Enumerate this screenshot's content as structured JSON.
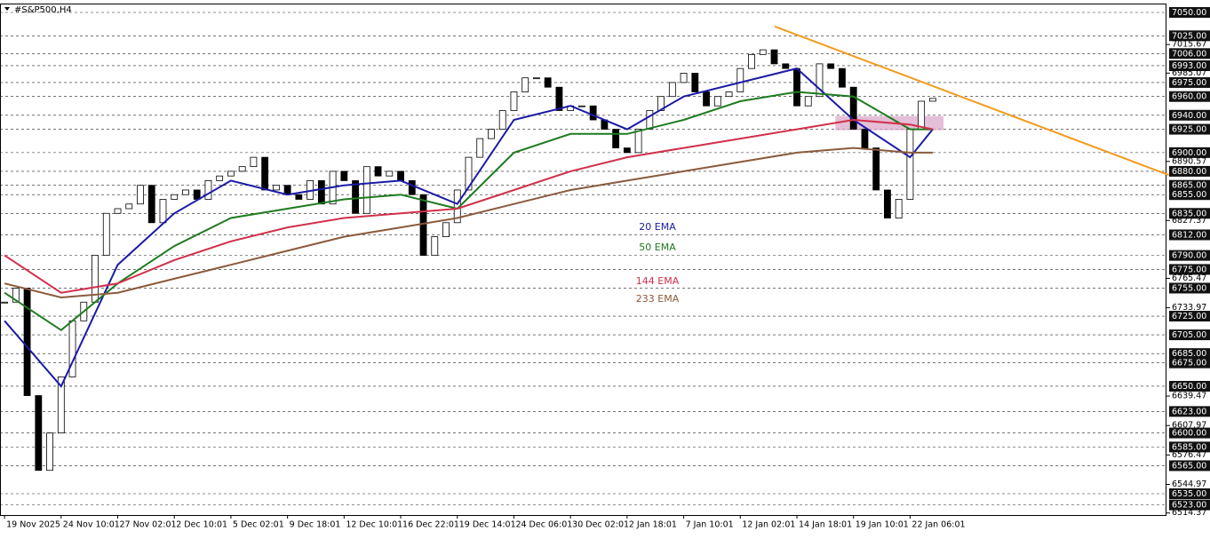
{
  "chart_data": {
    "type": "candlestick",
    "title": "#S&P500,H4",
    "xlim": [
      -0.08,
      20.53
    ],
    "ylim": [
      6512.2,
      7059.5
    ],
    "xticks": [
      {
        "value": 0,
        "label": "19 Nov 2025"
      },
      {
        "value": 1,
        "label": "24 Nov 10:01"
      },
      {
        "value": 2,
        "label": "27 Nov 02:01"
      },
      {
        "value": 3,
        "label": "2 Dec 10:01"
      },
      {
        "value": 4,
        "label": "5 Dec 02:01"
      },
      {
        "value": 5,
        "label": "9 Dec 18:01"
      },
      {
        "value": 6,
        "label": "12 Dec 10:01"
      },
      {
        "value": 7,
        "label": "16 Dec 22:01"
      },
      {
        "value": 8,
        "label": "19 Dec 14:01"
      },
      {
        "value": 9,
        "label": "24 Dec 06:01"
      },
      {
        "value": 10,
        "label": "30 Dec 02:01"
      },
      {
        "value": 11,
        "label": "2 Jan 18:01"
      },
      {
        "value": 12,
        "label": "7 Jan 10:01"
      },
      {
        "value": 13,
        "label": "12 Jan 02:01"
      },
      {
        "value": 14,
        "label": "14 Jan 18:01"
      },
      {
        "value": 15,
        "label": "19 Jan 10:01"
      },
      {
        "value": 16,
        "label": "22 Jan 06:01"
      }
    ],
    "yticks": [
      {
        "value": 7050,
        "label": "7050.00"
      },
      {
        "value": 7025,
        "label": "7025.00"
      },
      {
        "value": 7006,
        "label": "7006.00"
      },
      {
        "value": 6993,
        "label": "6993.00"
      },
      {
        "value": 6975,
        "label": "6975.00"
      },
      {
        "value": 6960,
        "label": "6960.00"
      },
      {
        "value": 6940,
        "label": "6940.00"
      },
      {
        "value": 6925,
        "label": "6925.00"
      },
      {
        "value": 6900,
        "label": "6900.00"
      },
      {
        "value": 6880,
        "label": "6880.00"
      },
      {
        "value": 6865,
        "label": "6865.00"
      },
      {
        "value": 6855,
        "label": "6855.00"
      },
      {
        "value": 6835,
        "label": "6835.00"
      },
      {
        "value": 6812,
        "label": "6812.00"
      },
      {
        "value": 6790,
        "label": "6790.00"
      },
      {
        "value": 6775,
        "label": "6775.00"
      },
      {
        "value": 6755,
        "label": "6755.00"
      },
      {
        "value": 6725,
        "label": "6725.00"
      },
      {
        "value": 6705,
        "label": "6705.00"
      },
      {
        "value": 6685,
        "label": "6685.00"
      },
      {
        "value": 6675,
        "label": "6675.00"
      },
      {
        "value": 6650,
        "label": "6650.00"
      },
      {
        "value": 6623,
        "label": "6623.00"
      },
      {
        "value": 6600,
        "label": "6600.00"
      },
      {
        "value": 6585,
        "label": "6585.00"
      },
      {
        "value": 6565,
        "label": "6565.00"
      },
      {
        "value": 6535,
        "label": "6535.00"
      },
      {
        "value": 6523,
        "label": "6523.00"
      }
    ],
    "yticks_minor": [
      7015.67,
      6985.07,
      6890.57,
      6827.37,
      6765.47,
      6733.97,
      6639.47,
      6607.97,
      6576.47,
      6544.97,
      6514.37
    ],
    "candles": {
      "step": 0.2,
      "bull_color": "#ffffff",
      "bear_color": "#000000",
      "close": [
        6740,
        6755,
        6640,
        6560,
        6600,
        6660,
        6720,
        6740,
        6790,
        6835,
        6840,
        6845,
        6865,
        6825,
        6850,
        6855,
        6860,
        6850,
        6870,
        6875,
        6880,
        6885,
        6895,
        6860,
        6865,
        6855,
        6850,
        6870,
        6845,
        6880,
        6870,
        6835,
        6885,
        6875,
        6880,
        6870,
        6855,
        6790,
        6810,
        6825,
        6860,
        6895,
        6915,
        6925,
        6945,
        6965,
        6980,
        6980,
        6970,
        6945,
        6950,
        6950,
        6935,
        6925,
        6905,
        6900,
        6925,
        6945,
        6960,
        6975,
        6985,
        6965,
        6950,
        6960,
        6965,
        6990,
        7005,
        7010,
        6995,
        6990,
        6950,
        6960,
        6995,
        6990,
        6970,
        6925,
        6905,
        6860,
        6830,
        6850,
        6925,
        6955,
        6958
      ]
    },
    "ema_x": [
      0,
      1,
      2,
      3,
      4,
      5,
      6,
      7,
      8,
      9,
      10,
      11,
      12,
      13,
      14,
      15,
      16,
      16.4
    ],
    "series": [
      {
        "name": "20 EMA",
        "color": "#1a1aa6",
        "values": [
          6720,
          6650,
          6780,
          6835,
          6870,
          6855,
          6865,
          6870,
          6845,
          6935,
          6950,
          6925,
          6960,
          6975,
          6990,
          6935,
          6895,
          6925
        ]
      },
      {
        "name": "50 EMA",
        "color": "#1f7a1f",
        "values": [
          6750,
          6710,
          6760,
          6800,
          6830,
          6840,
          6850,
          6855,
          6840,
          6900,
          6920,
          6920,
          6935,
          6955,
          6965,
          6960,
          6925,
          6925
        ]
      },
      {
        "name": "144 EMA",
        "color": "#d0304a",
        "values": [
          6790,
          6750,
          6760,
          6785,
          6805,
          6820,
          6830,
          6835,
          6840,
          6860,
          6880,
          6895,
          6905,
          6915,
          6925,
          6935,
          6930,
          6925
        ]
      },
      {
        "name": "233 EMA",
        "color": "#8b5a3c",
        "values": [
          6760,
          6745,
          6750,
          6765,
          6780,
          6795,
          6810,
          6820,
          6830,
          6845,
          6860,
          6870,
          6880,
          6890,
          6900,
          6905,
          6900,
          6900
        ]
      }
    ],
    "trendline": {
      "color": "#f39a1e",
      "x": [
        13.61,
        20.57
      ],
      "values": [
        7035,
        6876
      ]
    },
    "zone": {
      "color": "#d9a4c6",
      "x": [
        14.68,
        16.59
      ],
      "values": [
        6924,
        6939
      ]
    }
  }
}
